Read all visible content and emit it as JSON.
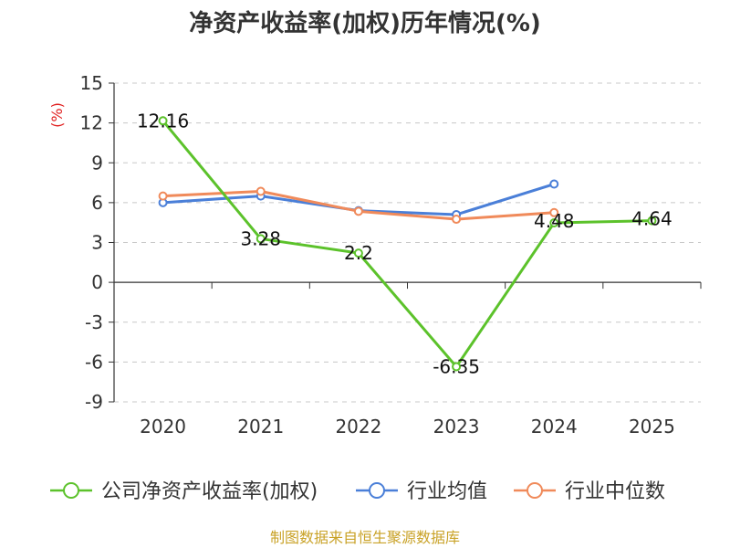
{
  "chart_data": {
    "type": "line",
    "title": "净资产收益率(加权)历年情况(%)",
    "unit_label": "(%)",
    "categories": [
      "2020",
      "2021",
      "2022",
      "2023",
      "2024",
      "2025"
    ],
    "ylim": [
      -9,
      15
    ],
    "yticks": [
      15,
      12,
      9,
      6,
      3,
      0,
      -3,
      -6,
      -9
    ],
    "grid": true,
    "legend_position": "bottom",
    "series": [
      {
        "name": "公司净资产收益率(加权)",
        "color": "#5cc22b",
        "values": [
          12.16,
          3.28,
          2.2,
          -6.35,
          4.48,
          4.64
        ],
        "labels": [
          "12.16",
          "3.28",
          "2.2",
          "-6.35",
          "4.48",
          "4.64"
        ]
      },
      {
        "name": "行业均值",
        "color": "#4a7fd8",
        "values": [
          6.0,
          6.5,
          5.4,
          5.1,
          7.4,
          null
        ]
      },
      {
        "name": "行业中位数",
        "color": "#f08a5a",
        "values": [
          6.5,
          6.85,
          5.35,
          4.75,
          5.25,
          null
        ]
      }
    ]
  },
  "footer": {
    "source": "制图数据来自恒生聚源数据库"
  }
}
